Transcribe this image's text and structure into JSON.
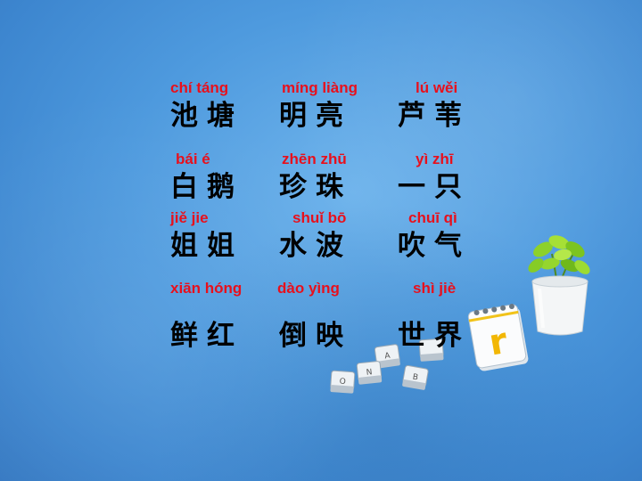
{
  "words": [
    {
      "pinyin": "chí  táng",
      "hanzi": "池塘"
    },
    {
      "pinyin": "míng liàng",
      "hanzi": "明亮"
    },
    {
      "pinyin": "lú   wěi",
      "hanzi": "芦苇"
    },
    {
      "pinyin": "bái    é",
      "hanzi": "白鹅"
    },
    {
      "pinyin": "zhēn zhū",
      "hanzi": "珍珠"
    },
    {
      "pinyin": "yì   zhī",
      "hanzi": "一只"
    },
    {
      "pinyin": "jiě     jie",
      "hanzi": "姐姐"
    },
    {
      "pinyin": "shuǐ  bō",
      "hanzi": "水波"
    },
    {
      "pinyin": "chuī qì",
      "hanzi": "吹气"
    },
    {
      "pinyin": "xiān hóng",
      "hanzi": "鲜红"
    },
    {
      "pinyin": "dào yìng",
      "hanzi": "倒映"
    },
    {
      "pinyin": "shì   jiè",
      "hanzi": "世界"
    }
  ],
  "decor": {
    "calendar_letter": "r",
    "key_letters": [
      "A",
      "N",
      "O",
      "B"
    ]
  },
  "colors": {
    "background": "#4e9ade",
    "pinyin": "#e8101c",
    "hanzi": "#000000"
  }
}
